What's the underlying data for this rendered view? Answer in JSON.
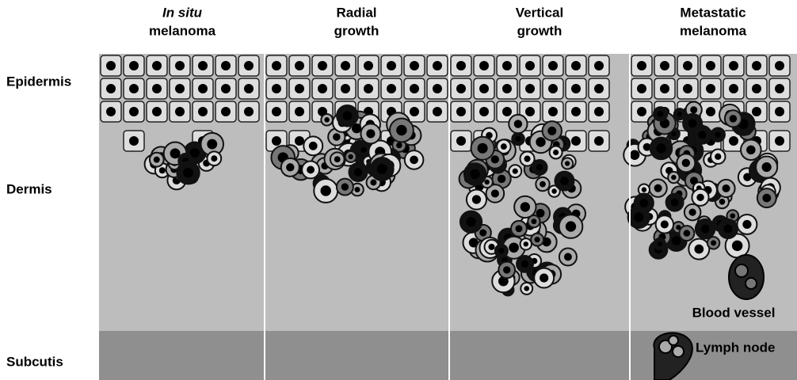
{
  "columns": [
    {
      "line1": "In situ",
      "line2": "melanoma"
    },
    {
      "line1": "Radial",
      "line2": "growth"
    },
    {
      "line1": "Vertical",
      "line2": "growth"
    },
    {
      "line1": "Metastatic",
      "line2": "melanoma"
    }
  ],
  "layers": [
    "Epidermis",
    "Dermis",
    "Subcutis"
  ],
  "annotations": {
    "blood_vessel": "Blood vessel",
    "lymph_node": "Lymph node"
  }
}
